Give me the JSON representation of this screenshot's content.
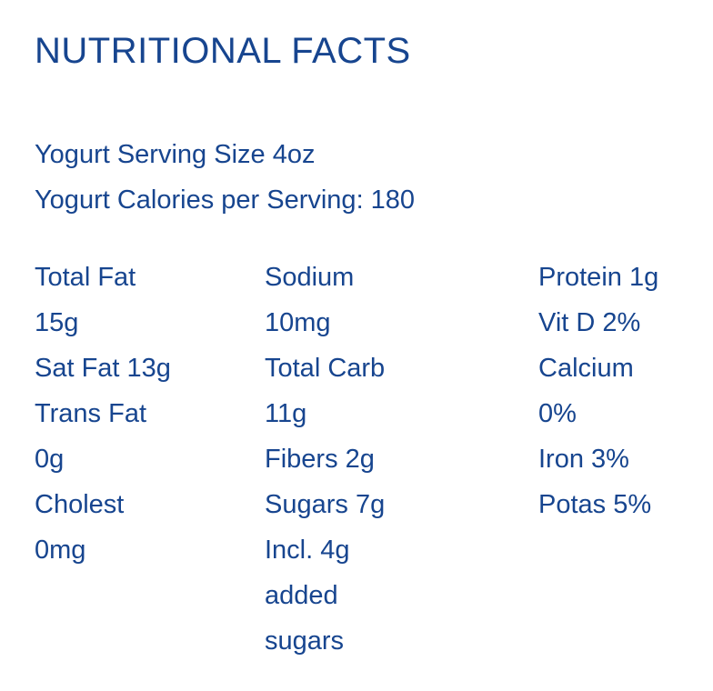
{
  "header": {
    "title": "NUTRITIONAL FACTS"
  },
  "serving": [
    "Yogurt Serving Size 4oz",
    "Yogurt Calories per Serving: 180"
  ],
  "columns": [
    [
      "Total Fat",
      "15g",
      "Sat Fat 13g",
      "Trans Fat",
      "0g",
      "Cholest",
      "0mg"
    ],
    [
      "Sodium",
      "10mg",
      "Total Carb",
      "11g",
      "Fibers 2g",
      "Sugars 7g",
      "Incl. 4g",
      "added",
      "sugars"
    ],
    [
      "Protein 1g",
      "Vit D 2%",
      "Calcium",
      "0%",
      "Iron 3%",
      "Potas 5%"
    ]
  ]
}
